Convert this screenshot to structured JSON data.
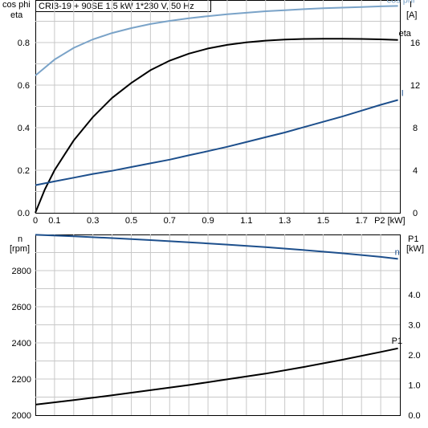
{
  "header": {
    "title": "CRI3-19 + 90SE   1.5 kW   1*230 V, 50 Hz"
  },
  "top_axis_labels": {
    "left_line1": "cos phi",
    "left_line2": "eta",
    "right_line1": "I",
    "right_line2": "[A]",
    "x_label": "P2 [kW]"
  },
  "bottom_axis_labels": {
    "left_line1": "n",
    "left_line2": "[rpm]",
    "right_line1": "P1",
    "right_line2": "[kW]"
  },
  "colors": {
    "cos_phi": "#7aa3c8",
    "eta": "#000000",
    "current": "#1d4f8c",
    "speed": "#1d4f8c",
    "p1": "#000000",
    "grid": "#c8c8c8"
  },
  "chart_data": [
    {
      "type": "line",
      "title": "CRI3-19 + 90SE   1.5 kW   1*230 V, 50 Hz",
      "xlabel": "P2 [kW]",
      "ylabel": "cos phi / eta",
      "y2label": "I [A]",
      "xlim": [
        0,
        1.9
      ],
      "ylim": [
        0,
        1.0
      ],
      "y2lim": [
        0,
        20
      ],
      "grid": true,
      "x_ticks": [
        "0",
        "0.1",
        "0.3",
        "0.5",
        "0.7",
        "0.9",
        "1.1",
        "1.3",
        "1.5",
        "1.7",
        "P2 [kW]"
      ],
      "y_ticks": [
        "0.0",
        "0.2",
        "0.4",
        "0.6",
        "0.8"
      ],
      "y2_ticks": [
        "0",
        "4",
        "8",
        "12",
        "16"
      ],
      "series": [
        {
          "name": "cos phi",
          "axis": "left",
          "color": "#7aa3c8",
          "x": [
            0,
            0.1,
            0.2,
            0.3,
            0.4,
            0.5,
            0.6,
            0.7,
            0.8,
            0.9,
            1.0,
            1.1,
            1.2,
            1.3,
            1.4,
            1.5,
            1.6,
            1.7,
            1.8,
            1.89
          ],
          "y": [
            0.645,
            0.72,
            0.775,
            0.815,
            0.845,
            0.868,
            0.887,
            0.902,
            0.914,
            0.924,
            0.933,
            0.94,
            0.947,
            0.952,
            0.957,
            0.961,
            0.964,
            0.967,
            0.97,
            0.972
          ]
        },
        {
          "name": "eta",
          "axis": "left",
          "color": "#000000",
          "x": [
            0,
            0.05,
            0.1,
            0.15,
            0.2,
            0.3,
            0.4,
            0.5,
            0.6,
            0.7,
            0.8,
            0.9,
            1.0,
            1.1,
            1.2,
            1.3,
            1.4,
            1.5,
            1.6,
            1.7,
            1.8,
            1.89
          ],
          "y": [
            0.0,
            0.11,
            0.2,
            0.27,
            0.34,
            0.45,
            0.54,
            0.61,
            0.67,
            0.715,
            0.748,
            0.772,
            0.789,
            0.801,
            0.809,
            0.814,
            0.817,
            0.818,
            0.818,
            0.817,
            0.815,
            0.812
          ]
        },
        {
          "name": "I",
          "axis": "right",
          "color": "#1d4f8c",
          "x": [
            0,
            0.1,
            0.2,
            0.3,
            0.4,
            0.5,
            0.6,
            0.7,
            0.8,
            0.9,
            1.0,
            1.1,
            1.2,
            1.3,
            1.4,
            1.5,
            1.6,
            1.7,
            1.8,
            1.89
          ],
          "y": [
            2.6,
            2.95,
            3.3,
            3.65,
            3.95,
            4.3,
            4.65,
            5.0,
            5.4,
            5.8,
            6.2,
            6.65,
            7.1,
            7.55,
            8.05,
            8.55,
            9.05,
            9.6,
            10.15,
            10.6
          ]
        }
      ]
    },
    {
      "type": "line",
      "ylabel": "n [rpm]",
      "y2label": "P1 [kW]",
      "xlim": [
        0,
        1.9
      ],
      "ylim": [
        2000,
        3000
      ],
      "y2lim": [
        0,
        6.0
      ],
      "grid": true,
      "y_ticks": [
        "2000",
        "2200",
        "2400",
        "2600",
        "2800"
      ],
      "y2_ticks": [
        "0.0",
        "1.0",
        "2.0",
        "3.0",
        "4.0"
      ],
      "series": [
        {
          "name": "n",
          "axis": "left",
          "color": "#1d4f8c",
          "x": [
            0,
            0.2,
            0.4,
            0.6,
            0.8,
            1.0,
            1.2,
            1.4,
            1.6,
            1.8,
            1.89
          ],
          "y": [
            2998,
            2990,
            2980,
            2969,
            2957,
            2944,
            2930,
            2914,
            2896,
            2876,
            2865
          ]
        },
        {
          "name": "P1",
          "axis": "right",
          "color": "#000000",
          "x": [
            0,
            0.2,
            0.4,
            0.6,
            0.8,
            1.0,
            1.2,
            1.4,
            1.6,
            1.8,
            1.89
          ],
          "y": [
            0.35,
            0.5,
            0.66,
            0.83,
            1.0,
            1.19,
            1.38,
            1.6,
            1.84,
            2.1,
            2.22
          ]
        }
      ]
    }
  ]
}
